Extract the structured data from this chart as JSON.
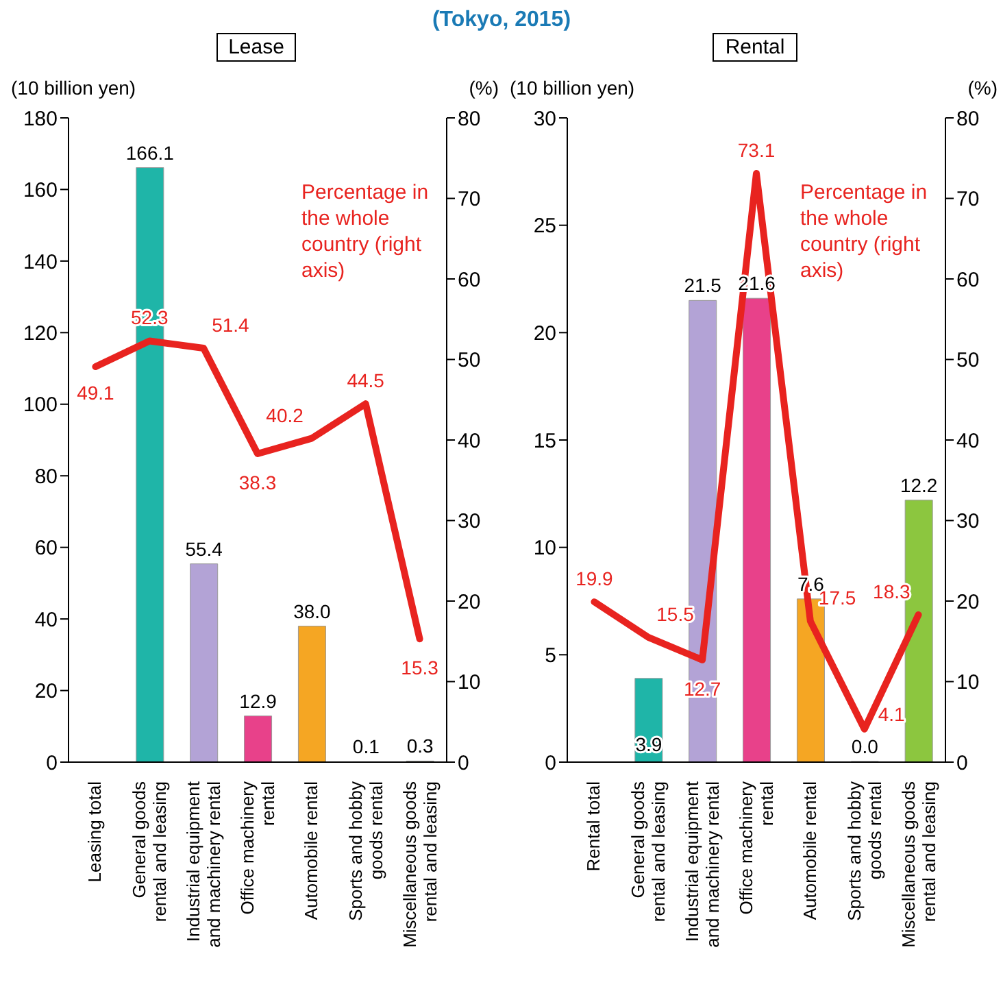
{
  "chart_data": [
    {
      "type": "bar",
      "title": "Lease",
      "ylabel": "(10 billion yen)",
      "y2label": "(%)",
      "categories": [
        "Leasing total",
        "General goods rental and leasing",
        "Industrial equipment and machinery rental",
        "Office machinery rental",
        "Automobile rental",
        "Sports and hobby goods rental",
        "Miscellaneous goods rental and leasing"
      ],
      "series": [
        {
          "colors": [
            "#888888",
            "#1fb5a8",
            "#b3a3d6",
            "#e8418a",
            "#f5a623",
            "#7a9cc6",
            "#8cc63f"
          ],
          "values": [
            null,
            166.1,
            55.4,
            12.9,
            38.0,
            0.1,
            0.3
          ],
          "value_labels": [
            null,
            "166.1",
            "55.4",
            "12.9",
            "38.0",
            "0.1",
            "0.3"
          ]
        },
        {
          "type": "line",
          "axis": "y2",
          "color": "#e8231f",
          "values": [
            49.1,
            52.3,
            51.4,
            38.3,
            40.2,
            44.5,
            15.3
          ],
          "value_labels": [
            "49.1",
            "52.3",
            "51.4",
            "38.3",
            "40.2",
            "44.5",
            "15.3"
          ]
        }
      ],
      "ylim": [
        0,
        180
      ],
      "yticks": [
        0,
        20,
        40,
        60,
        80,
        100,
        120,
        140,
        160,
        180
      ],
      "y2lim": [
        0,
        80
      ],
      "y2ticks": [
        0,
        10,
        20,
        30,
        40,
        50,
        60,
        70,
        80
      ],
      "grid": false,
      "legend": false,
      "marker": "none",
      "annotations": [
        "(Tokyo, 2015)",
        "Percentage in the whole country (right axis)"
      ]
    },
    {
      "type": "bar",
      "title": "Rental",
      "ylabel": "(10 billion yen)",
      "y2label": "(%)",
      "categories": [
        "Rental total",
        "General goods rental and leasing",
        "Industrial equipment and machinery rental",
        "Office machinery rental",
        "Automobile rental",
        "Sports and hobby goods rental",
        "Miscellaneous goods rental and leasing"
      ],
      "series": [
        {
          "colors": [
            "#888888",
            "#1fb5a8",
            "#b3a3d6",
            "#e8418a",
            "#f5a623",
            "#7a9cc6",
            "#8cc63f"
          ],
          "values": [
            null,
            3.9,
            21.5,
            21.6,
            7.6,
            0.0,
            12.2
          ],
          "value_labels": [
            null,
            "3.9",
            "21.5",
            "21.6",
            "7.6",
            "0.0",
            "12.2"
          ]
        },
        {
          "type": "line",
          "axis": "y2",
          "color": "#e8231f",
          "values": [
            19.9,
            15.5,
            12.7,
            73.1,
            17.5,
            4.1,
            18.3
          ],
          "value_labels": [
            "19.9",
            "15.5",
            "12.7",
            "73.1",
            "17.5",
            "4.1",
            "18.3"
          ]
        }
      ],
      "ylim": [
        0,
        30
      ],
      "yticks": [
        0,
        5,
        10,
        15,
        20,
        25,
        30
      ],
      "y2lim": [
        0,
        80
      ],
      "y2ticks": [
        0,
        10,
        20,
        30,
        40,
        50,
        60,
        70,
        80
      ],
      "grid": false,
      "legend": false,
      "marker": "none",
      "annotations": [
        "Percentage in the whole country (right axis)"
      ]
    }
  ]
}
